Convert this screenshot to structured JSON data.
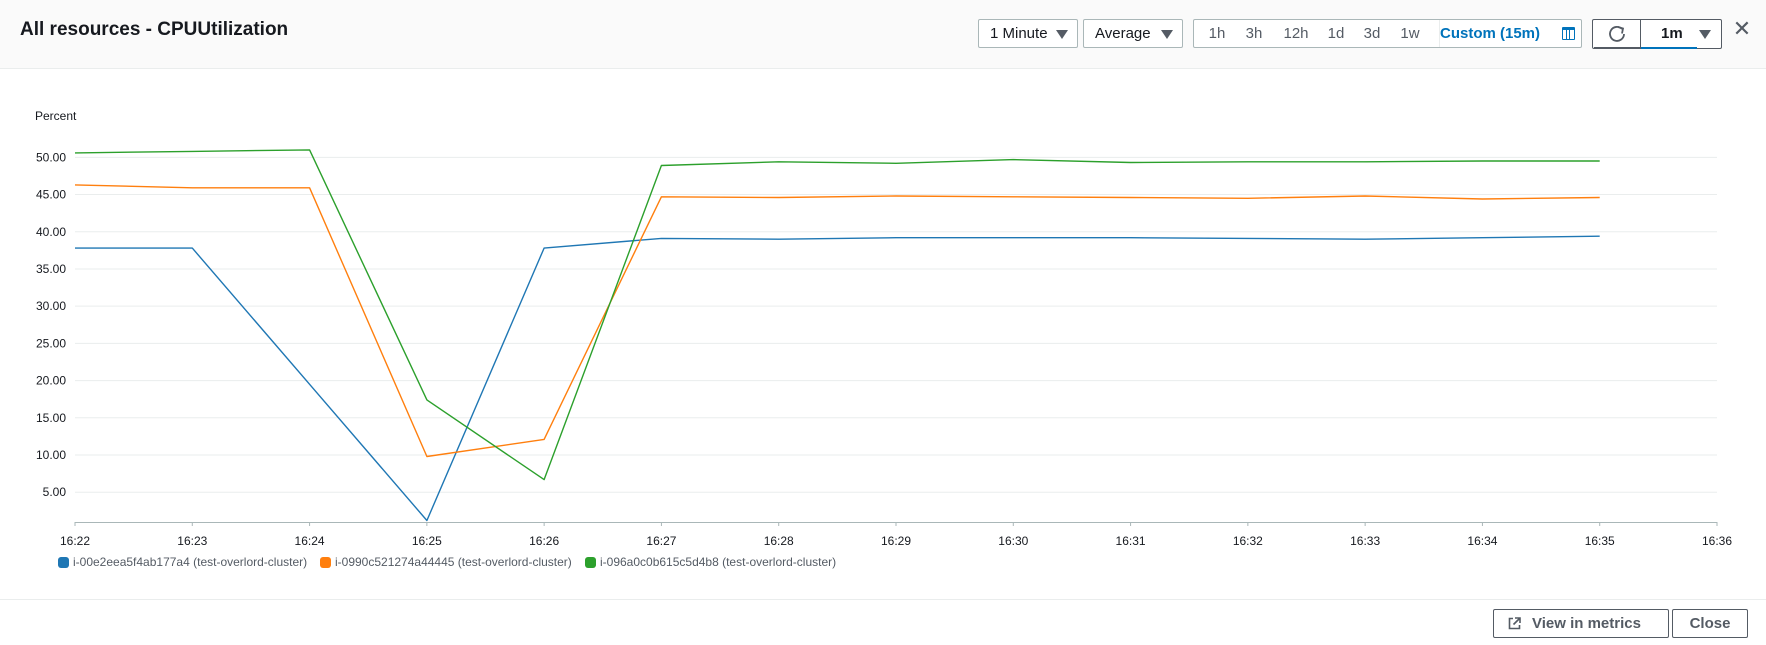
{
  "header": {
    "title": "All resources - CPUUtilization",
    "period_select": "1 Minute",
    "stat_select": "Average",
    "ranges": [
      "1h",
      "3h",
      "12h",
      "1d",
      "3d",
      "1w"
    ],
    "custom_range": "Custom (15m)",
    "refresh_interval": "1m",
    "close_glyph": "✕"
  },
  "chart_data": {
    "type": "line",
    "ylabel": "Percent",
    "ylim": [
      1.0,
      53.0
    ],
    "yticks": [
      "5.00",
      "10.00",
      "15.00",
      "20.00",
      "25.00",
      "30.00",
      "35.00",
      "40.00",
      "45.00",
      "50.00"
    ],
    "x": [
      "16:22",
      "16:23",
      "16:24",
      "16:25",
      "16:26",
      "16:27",
      "16:28",
      "16:29",
      "16:30",
      "16:31",
      "16:32",
      "16:33",
      "16:34",
      "16:35"
    ],
    "xticks": [
      "16:22",
      "16:23",
      "16:24",
      "16:25",
      "16:26",
      "16:27",
      "16:28",
      "16:29",
      "16:30",
      "16:31",
      "16:32",
      "16:33",
      "16:34",
      "16:35",
      "16:36"
    ],
    "grid": true,
    "legend": "bottom-left",
    "series": [
      {
        "name": "i-00e2eea5f4ab177a4 (test-overlord-cluster)",
        "color": "#1f77b4",
        "values": [
          37.8,
          37.8,
          19.5,
          1.2,
          37.8,
          39.1,
          39.0,
          39.2,
          39.2,
          39.2,
          39.1,
          39.0,
          39.2,
          39.4
        ]
      },
      {
        "name": "i-0990c521274a44445 (test-overlord-cluster)",
        "color": "#ff7f0e",
        "values": [
          46.3,
          45.9,
          45.9,
          9.8,
          12.1,
          44.7,
          44.6,
          44.8,
          44.7,
          44.6,
          44.5,
          44.8,
          44.4,
          44.6
        ]
      },
      {
        "name": "i-096a0c0b615c5d4b8 (test-overlord-cluster)",
        "color": "#2ca02c",
        "values": [
          50.6,
          50.8,
          51.0,
          17.4,
          6.7,
          48.9,
          49.4,
          49.2,
          49.7,
          49.3,
          49.4,
          49.4,
          49.5,
          49.5
        ]
      }
    ]
  },
  "footer": {
    "view_in_metrics": "View in metrics",
    "close": "Close"
  }
}
